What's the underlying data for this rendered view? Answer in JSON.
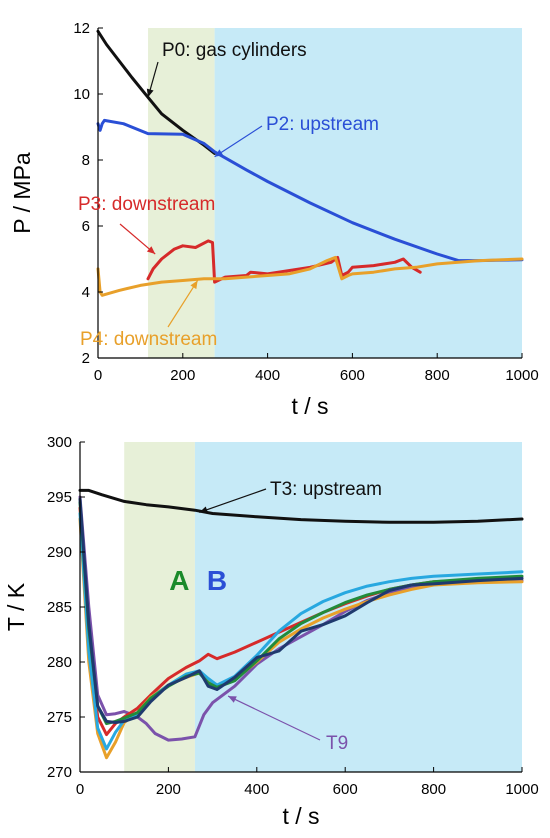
{
  "chart_data": [
    {
      "type": "line",
      "xlabel": "t / s",
      "ylabel": "P / MPa",
      "xlim": [
        0,
        1000
      ],
      "ylim": [
        2,
        12
      ],
      "xticks": [
        0,
        200,
        400,
        600,
        800,
        1000
      ],
      "yticks": [
        2,
        4,
        6,
        8,
        10,
        12
      ],
      "regions": [
        {
          "name": "",
          "x": [
            118,
            275
          ],
          "color": "#e7f0d8"
        },
        {
          "name": "",
          "x": [
            275,
            1000
          ],
          "color": "#c6eaf7"
        }
      ],
      "series": [
        {
          "name": "P0: gas cylinders",
          "color": "#111111",
          "x": [
            0,
            20,
            50,
            80,
            118,
            150,
            200,
            250,
            275
          ],
          "y": [
            11.9,
            11.5,
            11.0,
            10.5,
            9.9,
            9.4,
            8.9,
            8.45,
            8.2
          ]
        },
        {
          "name": "P2: upstream",
          "color": "#2a4fd6",
          "x": [
            0,
            5,
            10,
            15,
            60,
            118,
            200,
            250,
            275,
            350,
            400,
            500,
            600,
            700,
            800,
            850,
            900,
            1000
          ],
          "y": [
            9.1,
            8.9,
            9.1,
            9.2,
            9.1,
            8.8,
            8.78,
            8.5,
            8.25,
            7.7,
            7.35,
            6.7,
            6.1,
            5.6,
            5.15,
            4.95,
            4.95,
            4.98
          ]
        },
        {
          "name": "P3: downstream",
          "color": "#d62a2a",
          "x": [
            118,
            130,
            150,
            180,
            200,
            230,
            260,
            270,
            275,
            300,
            350,
            360,
            400,
            450,
            500,
            550,
            565,
            575,
            590,
            600,
            650,
            700,
            720,
            740,
            760
          ],
          "y": [
            4.4,
            4.7,
            5.0,
            5.3,
            5.4,
            5.35,
            5.55,
            5.5,
            4.3,
            4.45,
            4.5,
            4.6,
            4.55,
            4.65,
            4.75,
            4.9,
            5.05,
            4.5,
            4.6,
            4.75,
            4.8,
            4.9,
            5.0,
            4.75,
            4.6
          ]
        },
        {
          "name": "P4: downstream",
          "color": "#e8a02a",
          "x": [
            0,
            5,
            10,
            50,
            100,
            150,
            200,
            250,
            300,
            350,
            400,
            450,
            500,
            540,
            560,
            575,
            590,
            600,
            650,
            700,
            750,
            800,
            850,
            900,
            1000
          ],
          "y": [
            4.7,
            4.0,
            3.9,
            4.05,
            4.2,
            4.3,
            4.35,
            4.4,
            4.4,
            4.45,
            4.5,
            4.55,
            4.7,
            4.95,
            5.05,
            4.4,
            4.5,
            4.55,
            4.6,
            4.7,
            4.75,
            4.85,
            4.9,
            4.95,
            5.0
          ]
        }
      ],
      "annotations": [
        {
          "text": "P0: gas cylinders",
          "color": "#111111",
          "target": [
            118,
            9.9
          ]
        },
        {
          "text": "P2: upstream",
          "color": "#2a4fd6",
          "target": [
            275,
            8.1
          ]
        },
        {
          "text": "P3: downstream",
          "color": "#d62a2a",
          "target": [
            135,
            5.15
          ]
        },
        {
          "text": "P4: downstream",
          "color": "#e8a02a",
          "target": [
            235,
            4.35
          ]
        }
      ]
    },
    {
      "type": "line",
      "xlabel": "t / s",
      "ylabel": "T / K",
      "xlim": [
        0,
        1000
      ],
      "ylim": [
        270,
        300
      ],
      "xticks": [
        0,
        200,
        400,
        600,
        800,
        1000
      ],
      "yticks": [
        270,
        275,
        280,
        285,
        290,
        295,
        300
      ],
      "regions": [
        {
          "name": "A",
          "x": [
            100,
            260
          ],
          "color": "#e7f0d8",
          "label_color": "#1a8a2a"
        },
        {
          "name": "B",
          "x": [
            260,
            1000
          ],
          "color": "#c6eaf7",
          "label_color": "#2a4fd6"
        }
      ],
      "series": [
        {
          "name": "T3: upstream",
          "color": "#111111",
          "x": [
            0,
            20,
            50,
            100,
            150,
            200,
            260,
            300,
            400,
            500,
            600,
            700,
            800,
            900,
            1000
          ],
          "y": [
            295.6,
            295.6,
            295.2,
            294.6,
            294.3,
            294.1,
            293.8,
            293.5,
            293.2,
            292.95,
            292.8,
            292.7,
            292.7,
            292.8,
            293.0
          ]
        },
        {
          "name": "T9",
          "color": "#7b52ab",
          "x": [
            0,
            20,
            40,
            60,
            80,
            100,
            130,
            150,
            170,
            200,
            230,
            260,
            280,
            300,
            350,
            400,
            450,
            500,
            550,
            600,
            650,
            700,
            750,
            800,
            900,
            1000
          ],
          "y": [
            295,
            285,
            277,
            275.2,
            275.3,
            275.5,
            275.0,
            274.4,
            273.5,
            272.9,
            273.0,
            273.2,
            275.2,
            276.3,
            277.8,
            279.8,
            281.2,
            282.3,
            283.4,
            284.6,
            285.6,
            286.3,
            286.8,
            287.1,
            287.3,
            287.4
          ]
        },
        {
          "name": "",
          "color": "#d62a2a",
          "x": [
            0,
            20,
            40,
            60,
            80,
            100,
            130,
            160,
            200,
            240,
            270,
            290,
            310,
            350,
            400,
            450,
            500,
            550,
            600,
            650,
            700,
            750,
            800,
            900,
            1000
          ],
          "y": [
            294,
            282,
            275,
            273.4,
            274.4,
            275.0,
            275.8,
            277.0,
            278.5,
            279.5,
            280.1,
            280.7,
            280.3,
            280.9,
            281.8,
            282.7,
            283.6,
            284.5,
            285.3,
            286.0,
            286.6,
            287.0,
            287.3,
            287.5,
            287.6
          ]
        },
        {
          "name": "",
          "color": "#e8a02a",
          "x": [
            0,
            20,
            40,
            60,
            80,
            100,
            130,
            160,
            200,
            240,
            270,
            290,
            310,
            350,
            400,
            450,
            500,
            550,
            600,
            650,
            700,
            750,
            800,
            900,
            1000
          ],
          "y": [
            293,
            280,
            273.5,
            271.3,
            272.7,
            274.5,
            275.4,
            276.8,
            277.9,
            278.6,
            279.0,
            278.2,
            277.8,
            278.4,
            280.0,
            281.8,
            283.0,
            284.0,
            284.8,
            285.5,
            286.1,
            286.6,
            287.0,
            287.2,
            287.3
          ]
        },
        {
          "name": "",
          "color": "#28a8e0",
          "x": [
            0,
            20,
            40,
            60,
            80,
            100,
            130,
            160,
            200,
            240,
            270,
            290,
            310,
            350,
            400,
            450,
            500,
            550,
            600,
            650,
            700,
            750,
            800,
            900,
            1000
          ],
          "y": [
            293.5,
            281,
            274,
            272.1,
            273.6,
            274.7,
            275.3,
            276.7,
            277.9,
            278.9,
            279.2,
            278.5,
            277.9,
            278.7,
            280.6,
            282.8,
            284.4,
            285.5,
            286.3,
            286.9,
            287.3,
            287.6,
            287.8,
            288.0,
            288.2
          ]
        },
        {
          "name": "",
          "color": "#228b3a",
          "x": [
            0,
            20,
            40,
            60,
            80,
            100,
            130,
            160,
            200,
            240,
            270,
            290,
            310,
            350,
            400,
            450,
            500,
            550,
            600,
            650,
            700,
            750,
            800,
            900,
            1000
          ],
          "y": [
            294.5,
            283,
            276,
            274.4,
            274.6,
            274.9,
            275.4,
            276.7,
            277.8,
            278.7,
            279.0,
            278.1,
            277.7,
            278.3,
            280.1,
            282.1,
            283.5,
            284.5,
            285.4,
            286.1,
            286.6,
            287.0,
            287.3,
            287.6,
            287.8
          ]
        },
        {
          "name": "",
          "color": "#1f3a6e",
          "x": [
            0,
            20,
            40,
            60,
            80,
            100,
            130,
            160,
            200,
            240,
            270,
            290,
            310,
            350,
            400,
            450,
            500,
            550,
            600,
            650,
            700,
            750,
            800,
            900,
            1000
          ],
          "y": [
            294.8,
            283.5,
            276,
            274.6,
            274.5,
            274.6,
            275.0,
            276.4,
            277.9,
            278.6,
            279.2,
            277.8,
            277.5,
            278.6,
            280.4,
            281.0,
            282.8,
            283.4,
            284.2,
            285.4,
            286.5,
            287.0,
            287.1,
            287.4,
            287.6
          ]
        }
      ],
      "annotations": [
        {
          "text": "T3: upstream",
          "color": "#111111",
          "target": [
            270,
            293.6
          ]
        },
        {
          "text": "T9",
          "color": "#7b52ab",
          "target": [
            335,
            276.9
          ]
        }
      ]
    }
  ]
}
